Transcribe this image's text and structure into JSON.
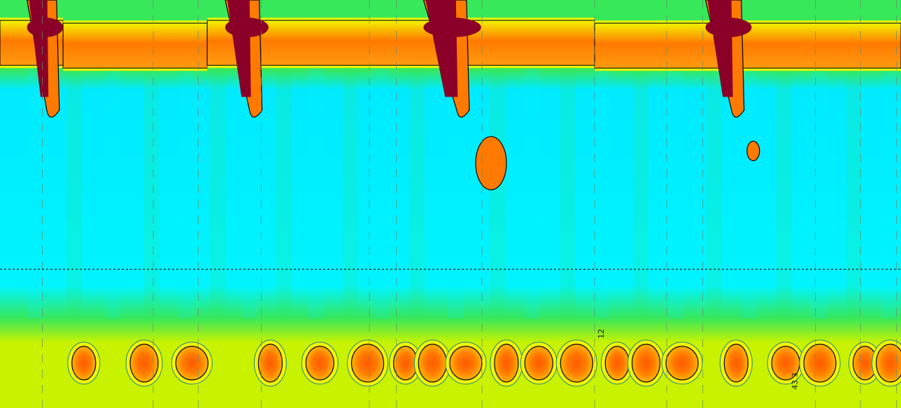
{
  "chart_data": {
    "type": "heatmap",
    "title": "",
    "xlabel": "",
    "ylabel": "",
    "grid": true,
    "colors": {
      "background": "#00f4ff",
      "mid": "#37e85a",
      "high": "#f2f400",
      "peak": "#ff7a00",
      "max": "#8a0028",
      "contour_outer": "#1d8a8a",
      "contour_inner": "#000000",
      "reference_line": "#222222"
    },
    "swallows": [
      {
        "start": 0.03,
        "end": 0.055
      },
      {
        "start": 0.25,
        "end": 0.28
      },
      {
        "start": 0.47,
        "end": 0.51
      },
      {
        "start": 0.783,
        "end": 0.815
      }
    ],
    "contractions": [
      0.093,
      0.16,
      0.213,
      0.3,
      0.355,
      0.408,
      0.45,
      0.48,
      0.517,
      0.562,
      0.598,
      0.64,
      0.685,
      0.717,
      0.757,
      0.817,
      0.872,
      0.91,
      0.96,
      0.988
    ],
    "upper_segment_breaks": [
      0.07,
      0.23,
      0.66
    ],
    "annotations": [
      {
        "text": "12",
        "x": 0.67,
        "y": 0.83
      },
      {
        "text": "43.3",
        "x": 0.885,
        "y": 0.955
      }
    ]
  }
}
